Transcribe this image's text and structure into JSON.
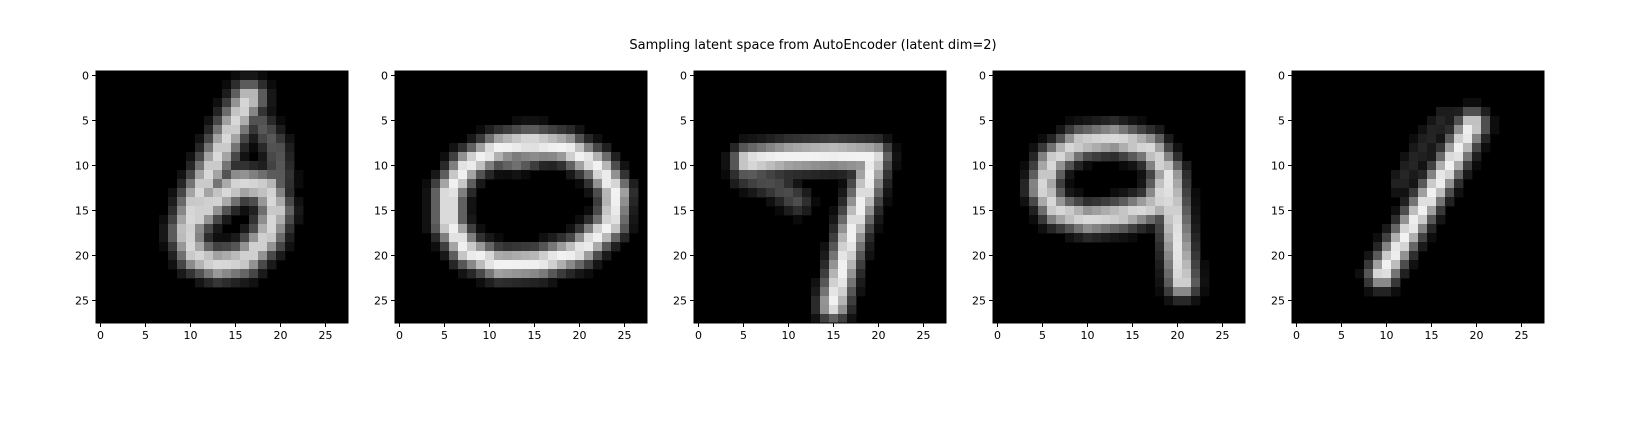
{
  "chart_data": {
    "type": "heatmap",
    "title": "Sampling latent space from AutoEncoder (latent dim=2)",
    "colormap": "gray",
    "image_size": [
      28,
      28
    ],
    "xticks": [
      0,
      5,
      10,
      15,
      20,
      25
    ],
    "yticks": [
      0,
      5,
      10,
      15,
      20,
      25
    ],
    "xlim": [
      -0.5,
      27.5
    ],
    "ylim": [
      27.5,
      -0.5
    ],
    "panels": [
      {
        "digit": "6",
        "strokes": [
          {
            "pts": [
              [
                16.5,
                2.5
              ],
              [
                14.5,
                6
              ],
              [
                12.5,
                10
              ],
              [
                10.5,
                14
              ],
              [
                9.5,
                17.5
              ],
              [
                10.5,
                20
              ],
              [
                13,
                21
              ],
              [
                16,
                20.5
              ],
              [
                18.5,
                18
              ],
              [
                19.5,
                15
              ],
              [
                18.5,
                12.5
              ],
              [
                15.5,
                12
              ],
              [
                12.5,
                14
              ],
              [
                10.5,
                16
              ]
            ],
            "w": 2.4,
            "i": 0.85
          },
          {
            "pts": [
              [
                17.5,
                5
              ],
              [
                19.5,
                8
              ],
              [
                20,
                11.5
              ]
            ],
            "w": 2.0,
            "i": 0.35
          }
        ]
      },
      {
        "digit": "0",
        "strokes": [
          {
            "pts": [
              [
                11,
                8
              ],
              [
                7.5,
                10
              ],
              [
                5.5,
                13
              ],
              [
                5.5,
                16.5
              ],
              [
                7.5,
                19.5
              ],
              [
                11,
                21
              ],
              [
                15.5,
                20.8
              ],
              [
                20,
                19.5
              ],
              [
                23.5,
                16.5
              ],
              [
                24,
                13
              ],
              [
                22,
                10
              ],
              [
                18.5,
                8
              ],
              [
                14.5,
                7.5
              ],
              [
                11,
                8
              ]
            ],
            "w": 2.2,
            "i": 0.95
          },
          {
            "pts": [
              [
                9.5,
                9
              ],
              [
                13,
                9.5
              ],
              [
                17,
                8.5
              ]
            ],
            "w": 1.5,
            "i": 0.55
          }
        ]
      },
      {
        "digit": "7",
        "strokes": [
          {
            "pts": [
              [
                5.5,
                9.5
              ],
              [
                10,
                9
              ],
              [
                15,
                8.8
              ],
              [
                19.5,
                9
              ]
            ],
            "w": 2.2,
            "i": 0.95
          },
          {
            "pts": [
              [
                19.5,
                9
              ],
              [
                18.5,
                13
              ],
              [
                17,
                17.5
              ],
              [
                16,
                21.5
              ],
              [
                15,
                25.5
              ]
            ],
            "w": 2.2,
            "i": 0.95
          },
          {
            "pts": [
              [
                5,
                11
              ],
              [
                9,
                12.5
              ],
              [
                11,
                14
              ]
            ],
            "w": 2.0,
            "i": 0.3
          }
        ]
      },
      {
        "digit": "9",
        "strokes": [
          {
            "pts": [
              [
                9,
                7.5
              ],
              [
                6,
                9.5
              ],
              [
                5,
                12.5
              ],
              [
                6.5,
                15
              ],
              [
                10,
                16
              ],
              [
                14,
                15.5
              ],
              [
                17.5,
                14.5
              ],
              [
                19,
                11
              ],
              [
                17,
                8
              ],
              [
                13,
                7
              ],
              [
                9,
                7.5
              ]
            ],
            "w": 2.2,
            "i": 0.85
          },
          {
            "pts": [
              [
                19,
                11
              ],
              [
                19.5,
                15
              ],
              [
                20,
                19
              ],
              [
                20.5,
                23
              ]
            ],
            "w": 2.2,
            "i": 0.9
          }
        ]
      },
      {
        "digit": "1",
        "strokes": [
          {
            "pts": [
              [
                19.5,
                5.5
              ],
              [
                17,
                10
              ],
              [
                14.5,
                14
              ],
              [
                12,
                18
              ],
              [
                9.5,
                22
              ]
            ],
            "w": 2.1,
            "i": 0.95
          },
          {
            "pts": [
              [
                16.5,
                4.5
              ],
              [
                14,
                8
              ],
              [
                11.5,
                12
              ]
            ],
            "w": 1.8,
            "i": 0.15
          }
        ]
      }
    ]
  }
}
